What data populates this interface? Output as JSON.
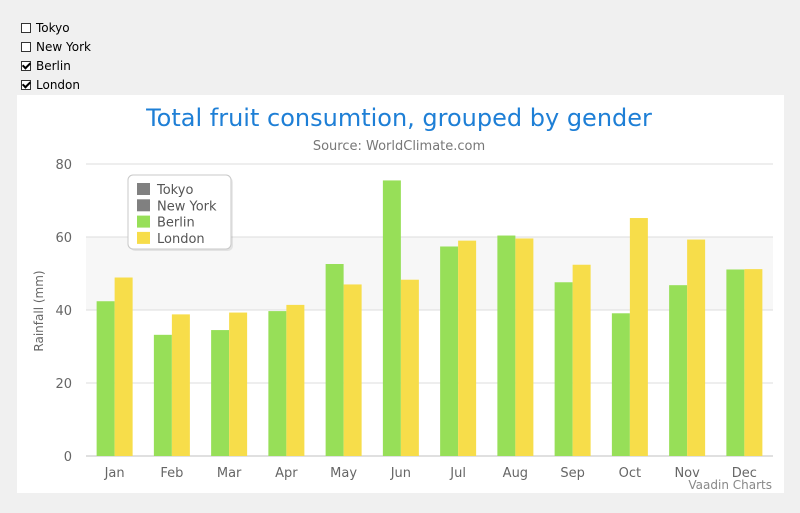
{
  "checkboxes": [
    {
      "label": "Tokyo",
      "checked": false
    },
    {
      "label": "New York",
      "checked": false
    },
    {
      "label": "Berlin",
      "checked": true
    },
    {
      "label": "London",
      "checked": true
    }
  ],
  "credits": "Vaadin Charts",
  "chart_data": {
    "type": "bar",
    "title": "Total fruit consumtion, grouped by gender",
    "subtitle": "Source: WorldClimate.com",
    "xlabel": "",
    "ylabel": "Rainfall (mm)",
    "ylim": [
      0,
      80
    ],
    "yticks": [
      0,
      20,
      40,
      60,
      80
    ],
    "grid": true,
    "legend_position": "top-left",
    "categories": [
      "Jan",
      "Feb",
      "Mar",
      "Apr",
      "May",
      "Jun",
      "Jul",
      "Aug",
      "Sep",
      "Oct",
      "Nov",
      "Dec"
    ],
    "legend": [
      {
        "name": "Tokyo",
        "color": "#808080"
      },
      {
        "name": "New York",
        "color": "#808080"
      },
      {
        "name": "Berlin",
        "color": "#97df58"
      },
      {
        "name": "London",
        "color": "#f7dd4a"
      }
    ],
    "series": [
      {
        "name": "Berlin",
        "color": "#97df58",
        "values": [
          42.4,
          33.2,
          34.5,
          39.7,
          52.6,
          75.5,
          57.4,
          60.4,
          47.6,
          39.1,
          46.8,
          51.1
        ]
      },
      {
        "name": "London",
        "color": "#f7dd4a",
        "values": [
          48.9,
          38.8,
          39.3,
          41.4,
          47.0,
          48.3,
          59.0,
          59.6,
          52.4,
          65.2,
          59.3,
          51.2
        ]
      }
    ]
  }
}
